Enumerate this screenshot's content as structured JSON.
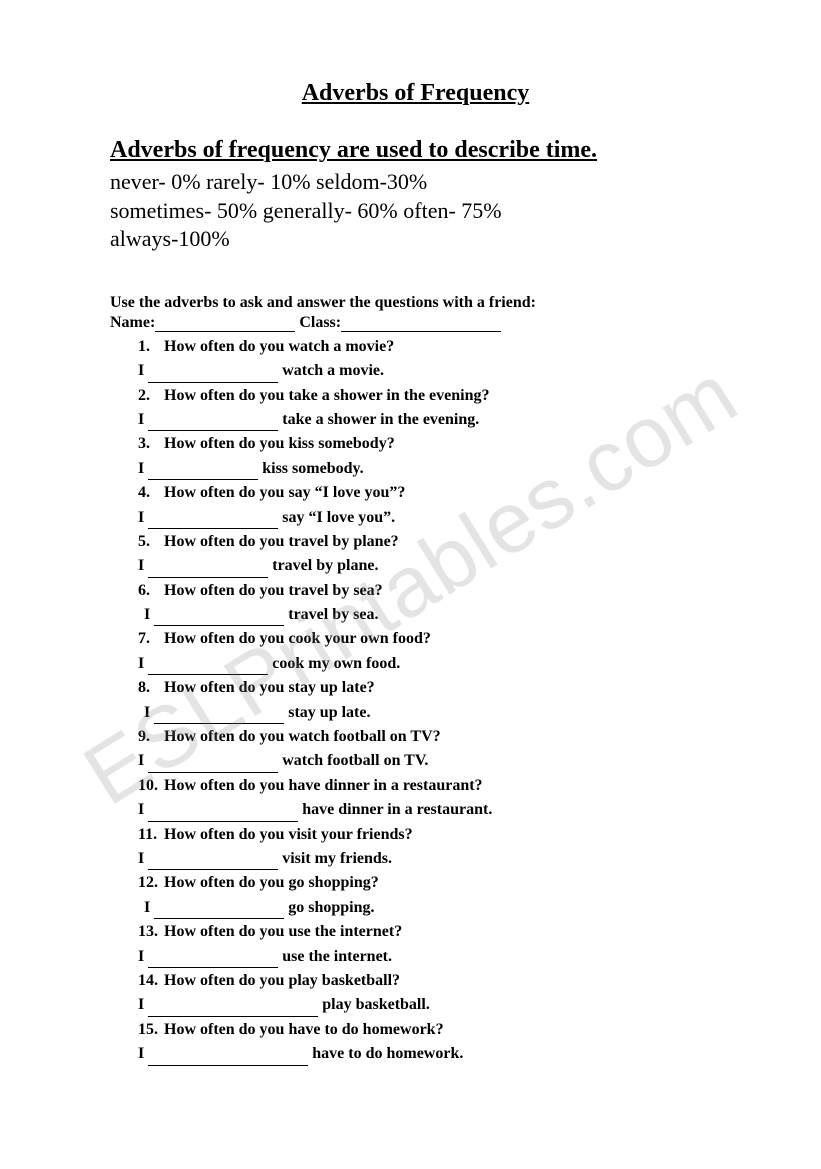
{
  "title": "Adverbs of Frequency",
  "subtitle": "Adverbs of frequency are used to describe time.",
  "adverbLines": [
    "never-  0%   rarely-  10% seldom-30%",
    "sometimes- 50%  generally- 60%   often- 75%",
    "always-100%"
  ],
  "instructions": "Use the adverbs to ask and answer the questions with a friend:",
  "nameLabel": "Name:",
  "classLabel": "Class:",
  "nameBlankWidth": 140,
  "classBlankWidth": 160,
  "questions": [
    {
      "num": "1.",
      "q": "How often do you watch a movie?",
      "ans": "watch a movie.",
      "blankWidth": 130,
      "indent": 0
    },
    {
      "num": "2.",
      "q": "How often do you take a shower in the evening?",
      "ans": "take a shower in the evening.",
      "blankWidth": 130,
      "indent": 0
    },
    {
      "num": "3.",
      "q": "How often do you kiss somebody?",
      "ans": "kiss somebody.",
      "blankWidth": 110,
      "indent": 0
    },
    {
      "num": "4.",
      "q": "How often do you say “I love you”?",
      "ans": "say “I love you”.",
      "blankWidth": 130,
      "indent": 0
    },
    {
      "num": "5.",
      "q": "How often do you travel by plane?",
      "ans": "travel by plane.",
      "blankWidth": 120,
      "indent": 0
    },
    {
      "num": "6.",
      "q": "How often do you travel by sea?",
      "ans": "travel by sea.",
      "blankWidth": 130,
      "indent": 6
    },
    {
      "num": "7.",
      "q": "How often do you cook your own food?",
      "ans": "cook my own food.",
      "blankWidth": 120,
      "indent": 0
    },
    {
      "num": "8.",
      "q": "How often do you stay up late?",
      "ans": "stay up late.",
      "blankWidth": 130,
      "indent": 6
    },
    {
      "num": "9.",
      "q": "How often do you watch football on TV?",
      "ans": "watch football on TV.",
      "blankWidth": 130,
      "indent": 0
    },
    {
      "num": "10.",
      "q": "How often do you have dinner in a restaurant?",
      "ans": "have dinner in a restaurant.",
      "blankWidth": 150,
      "indent": 0
    },
    {
      "num": "11.",
      "q": "How often do you visit your friends?",
      "ans": "visit my friends.",
      "blankWidth": 130,
      "indent": 0
    },
    {
      "num": "12.",
      "q": "How often do you go shopping?",
      "ans": "go shopping.",
      "blankWidth": 130,
      "indent": 6
    },
    {
      "num": "13.",
      "q": "How often do you use the internet?",
      "ans": "use the internet.",
      "blankWidth": 130,
      "indent": 0
    },
    {
      "num": "14.",
      "q": "How often do you play basketball?",
      "ans": "play basketball.",
      "blankWidth": 170,
      "indent": 0
    },
    {
      "num": "15.",
      "q": "How often do you have to do homework?",
      "ans": "have to do homework.",
      "blankWidth": 160,
      "indent": 0
    }
  ],
  "watermark": "ESLPrintables.com",
  "colors": {
    "background": "#ffffff",
    "text": "#000000",
    "watermark": "rgba(130,130,130,0.22)"
  }
}
